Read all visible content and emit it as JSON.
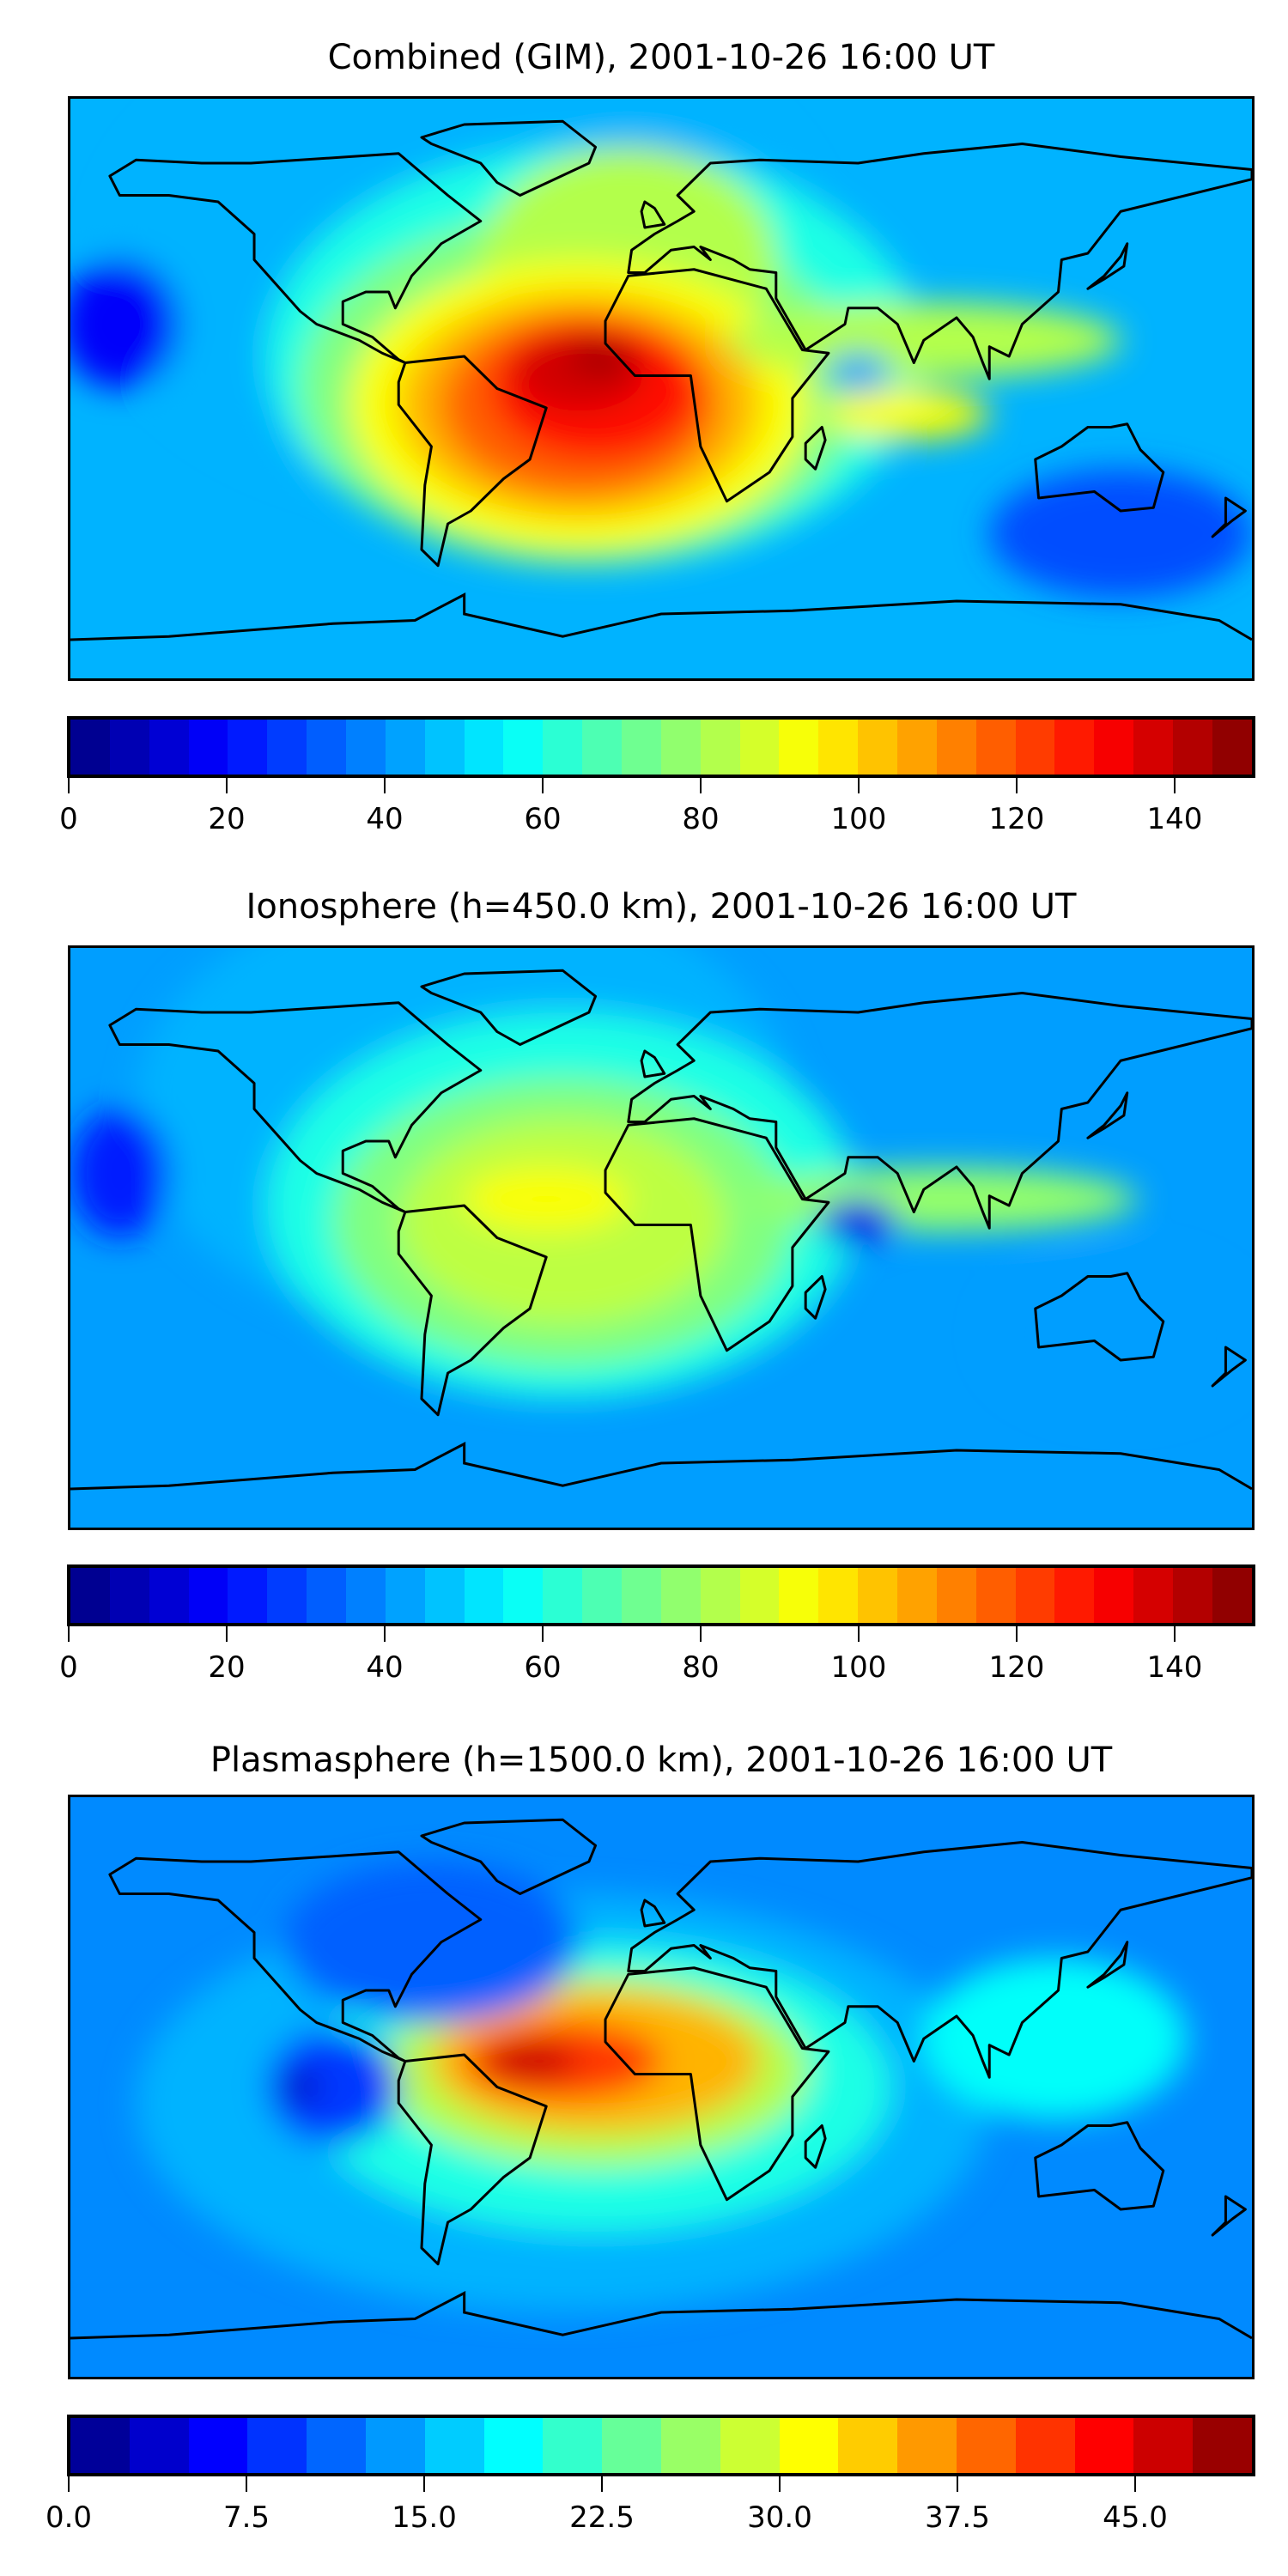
{
  "chart_data": [
    {
      "type": "heatmap",
      "title": "Combined (GIM), 2001-10-26 16:00 UT",
      "projection": "plate-carree",
      "colormap": "jet",
      "colorbar": {
        "min": 0,
        "max": 150,
        "step": 5,
        "ticks": [
          "0",
          "20",
          "40",
          "60",
          "80",
          "100",
          "120",
          "140"
        ]
      },
      "features": "maximum ~145 over equatorial Atlantic / South America, minimum over Arabian Sea and Pacific high latitudes"
    },
    {
      "type": "heatmap",
      "title": "Ionosphere  (h=450.0 km), 2001-10-26 16:00 UT",
      "projection": "plate-carree",
      "colormap": "jet",
      "colorbar": {
        "min": 0,
        "max": 150,
        "step": 5,
        "ticks": [
          "0",
          "20",
          "40",
          "60",
          "80",
          "100",
          "120",
          "140"
        ]
      },
      "features": "equatorial band ~80-100 over Atlantic, deep minimum over Arabian Sea"
    },
    {
      "type": "heatmap",
      "title": "Plasmasphere (h=1500.0 km), 2001-10-26 16:00 UT",
      "projection": "plate-carree",
      "colormap": "jet",
      "colorbar": {
        "min": 0,
        "max": 50,
        "step": 2.5,
        "ticks": [
          "0.0",
          "7.5",
          "15.0",
          "22.5",
          "30.0",
          "37.5",
          "45.0"
        ]
      },
      "features": "maximum ~47 over Brazil / tropical Atlantic"
    }
  ]
}
